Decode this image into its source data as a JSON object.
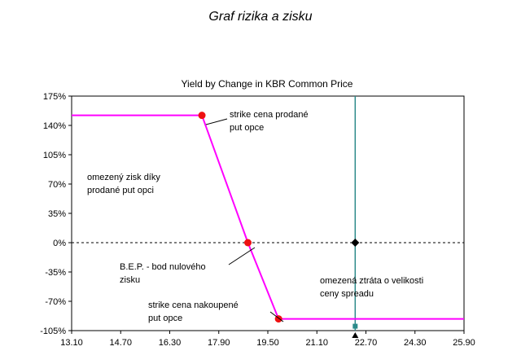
{
  "caption": "Graf rizika a zisku",
  "colors": {
    "line": "#ff00ff",
    "marker": "#ee1111",
    "current_price_line": "#2b8a8a",
    "zero_line": "#000000",
    "axis": "#000000"
  },
  "chart_data": {
    "type": "line",
    "title": "Yield by Change in KBR Common Price",
    "xlabel": "",
    "ylabel": "",
    "xlim": [
      13.1,
      25.9
    ],
    "ylim": [
      -105,
      175
    ],
    "x_ticks": [
      "13.10",
      "14.70",
      "16.30",
      "17.90",
      "19.50",
      "21.10",
      "22.70",
      "24.30",
      "25.90"
    ],
    "y_ticks": [
      {
        "value": 175,
        "label": "175%"
      },
      {
        "value": 140,
        "label": "140%"
      },
      {
        "value": 105,
        "label": "105%"
      },
      {
        "value": 70,
        "label": "70%"
      },
      {
        "value": 35,
        "label": "35%"
      },
      {
        "value": 0,
        "label": "0%"
      },
      {
        "value": -35,
        "label": "-35%"
      },
      {
        "value": -70,
        "label": "-70%"
      },
      {
        "value": -105,
        "label": "-105%"
      }
    ],
    "series": [
      {
        "x": [
          13.1,
          17.35,
          18.85,
          19.85,
          25.9
        ],
        "y": [
          152,
          152,
          0,
          -91,
          -91
        ]
      }
    ],
    "key_points": [
      {
        "x": 17.35,
        "y": 152
      },
      {
        "x": 18.85,
        "y": 0
      },
      {
        "x": 19.85,
        "y": -91
      }
    ],
    "zero_line": {
      "y": 0,
      "style": "dashed"
    },
    "current_price_x": 22.35,
    "current_price_marker_y": 0,
    "annotations": [
      {
        "lines": [
          "strike cena prodané",
          "put opce"
        ]
      },
      {
        "lines": [
          "omezený zisk díky",
          "prodané put opci"
        ]
      },
      {
        "lines": [
          "B.E.P. - bod nulového",
          "zisku"
        ]
      },
      {
        "lines": [
          "omezená ztráta o velikosti",
          "ceny spreadu"
        ]
      },
      {
        "lines": [
          "strike cena nakoupené",
          "put opce"
        ]
      }
    ]
  }
}
